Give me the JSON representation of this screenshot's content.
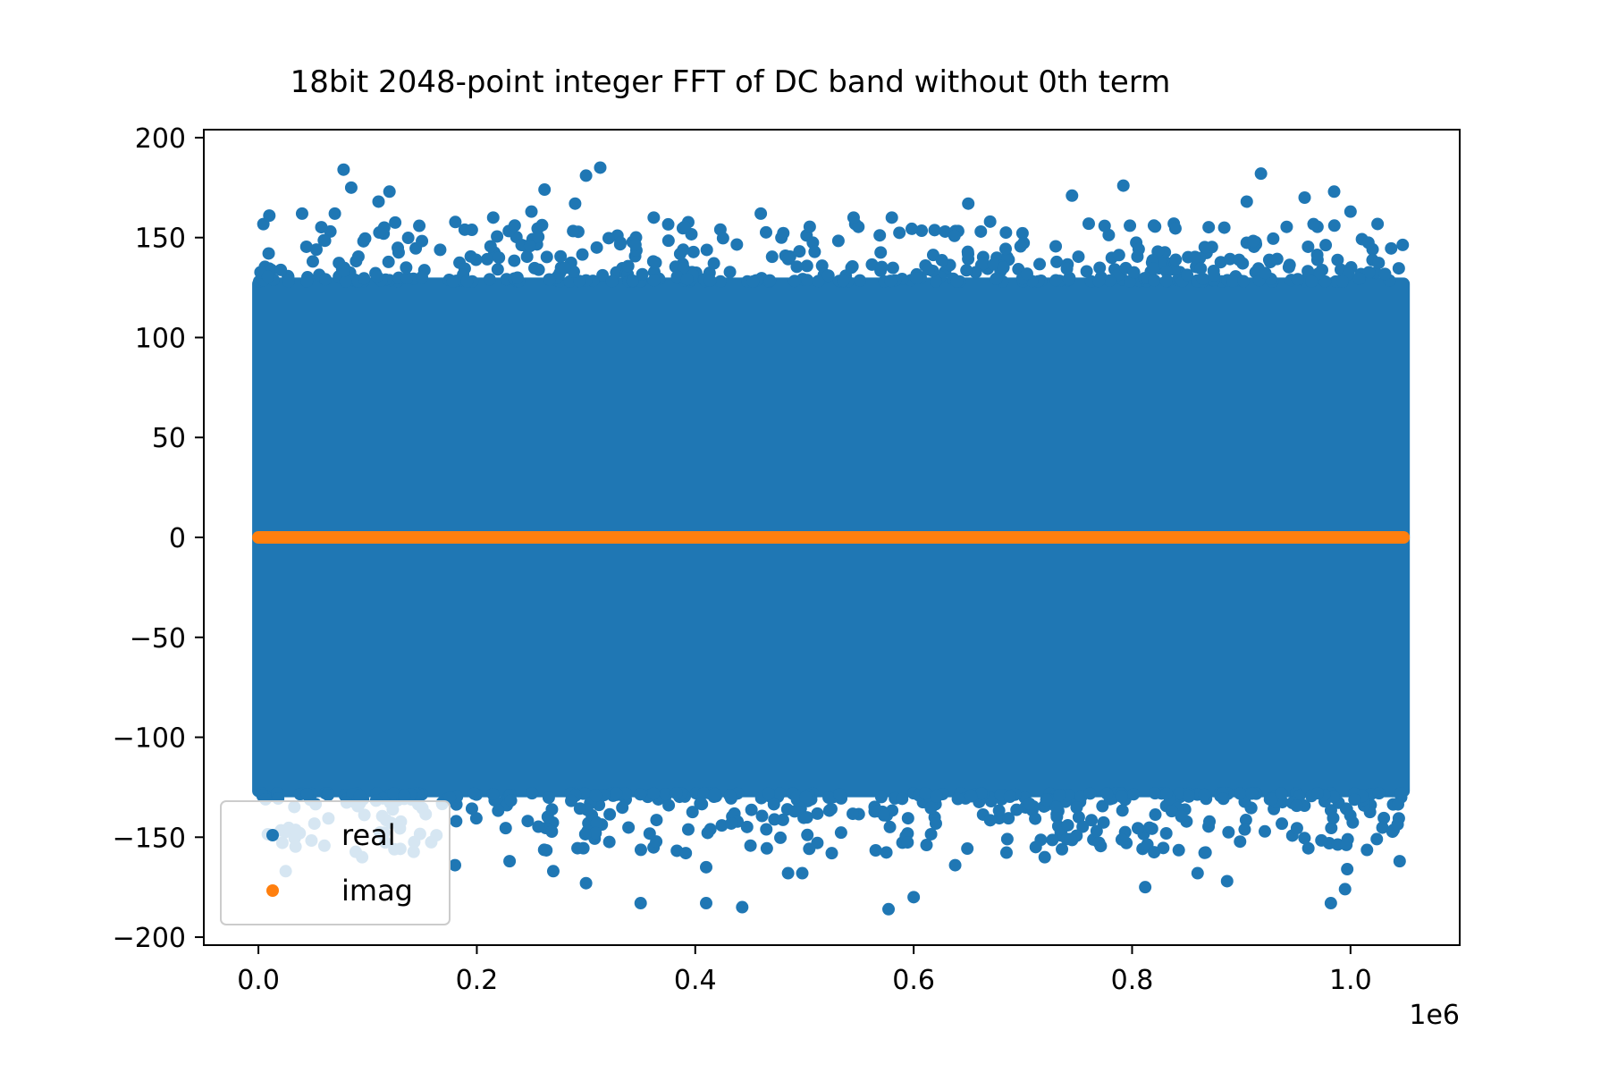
{
  "chart_data": {
    "type": "scatter",
    "title": "18bit 2048-point integer FFT of DC band without 0th term",
    "xlabel": "",
    "ylabel": "",
    "x_offset_text": "1e6",
    "xlim": [
      -50000,
      1100000
    ],
    "ylim": [
      -204,
      204
    ],
    "x_ticks": [
      0,
      200000,
      400000,
      600000,
      800000,
      1000000
    ],
    "x_tick_labels": [
      "0.0",
      "0.2",
      "0.4",
      "0.6",
      "0.8",
      "1.0"
    ],
    "y_ticks": [
      200,
      150,
      100,
      50,
      0,
      -50,
      -100,
      -150,
      -200
    ],
    "y_tick_labels": [
      "200",
      "150",
      "100",
      "50",
      "0",
      "−50",
      "−100",
      "−150",
      "−200"
    ],
    "grid": false,
    "legend_position": "lower-left",
    "x_range": [
      0,
      1048575
    ],
    "series": [
      {
        "name": "real",
        "color": "#1f77b4",
        "dense_band": {
          "x": [
            0,
            1048575
          ],
          "y": [
            -130,
            130
          ]
        },
        "outliers": [
          {
            "x": 78000,
            "y": 184
          },
          {
            "x": 85000,
            "y": 175
          },
          {
            "x": 120000,
            "y": 173
          },
          {
            "x": 300000,
            "y": 181
          },
          {
            "x": 313000,
            "y": 185
          },
          {
            "x": 262000,
            "y": 174
          },
          {
            "x": 10000,
            "y": 161
          },
          {
            "x": 40000,
            "y": 162
          },
          {
            "x": 70000,
            "y": 162
          },
          {
            "x": 215000,
            "y": 160
          },
          {
            "x": 362000,
            "y": 160
          },
          {
            "x": 460000,
            "y": 162
          },
          {
            "x": 545000,
            "y": 160
          },
          {
            "x": 650000,
            "y": 167
          },
          {
            "x": 745000,
            "y": 171
          },
          {
            "x": 792000,
            "y": 176
          },
          {
            "x": 918000,
            "y": 182
          },
          {
            "x": 958000,
            "y": 170
          },
          {
            "x": 985000,
            "y": 173
          },
          {
            "x": 1000000,
            "y": 163
          },
          {
            "x": 905000,
            "y": 168
          },
          {
            "x": 820000,
            "y": 156
          },
          {
            "x": 670000,
            "y": 158
          },
          {
            "x": 580000,
            "y": 160
          },
          {
            "x": 110000,
            "y": 168
          },
          {
            "x": 250000,
            "y": 163
          },
          {
            "x": 290000,
            "y": 167
          },
          {
            "x": 350000,
            "y": -183
          },
          {
            "x": 410000,
            "y": -183
          },
          {
            "x": 443000,
            "y": -185
          },
          {
            "x": 577000,
            "y": -186
          },
          {
            "x": 600000,
            "y": -180
          },
          {
            "x": 982000,
            "y": -183
          },
          {
            "x": 995000,
            "y": -176
          },
          {
            "x": 812000,
            "y": -175
          },
          {
            "x": 887000,
            "y": -172
          },
          {
            "x": 300000,
            "y": -173
          },
          {
            "x": 498000,
            "y": -168
          },
          {
            "x": 485000,
            "y": -168
          },
          {
            "x": 270000,
            "y": -167
          },
          {
            "x": 230000,
            "y": -162
          },
          {
            "x": 95000,
            "y": -160
          },
          {
            "x": 25000,
            "y": -167
          },
          {
            "x": 997000,
            "y": -166
          },
          {
            "x": 638000,
            "y": -164
          },
          {
            "x": 720000,
            "y": -160
          },
          {
            "x": 860000,
            "y": -168
          },
          {
            "x": 410000,
            "y": -165
          },
          {
            "x": 180000,
            "y": -164
          },
          {
            "x": 525000,
            "y": -158
          },
          {
            "x": 1045000,
            "y": -162
          }
        ]
      },
      {
        "name": "imag",
        "color": "#ff7f0e",
        "y": 0
      }
    ]
  }
}
